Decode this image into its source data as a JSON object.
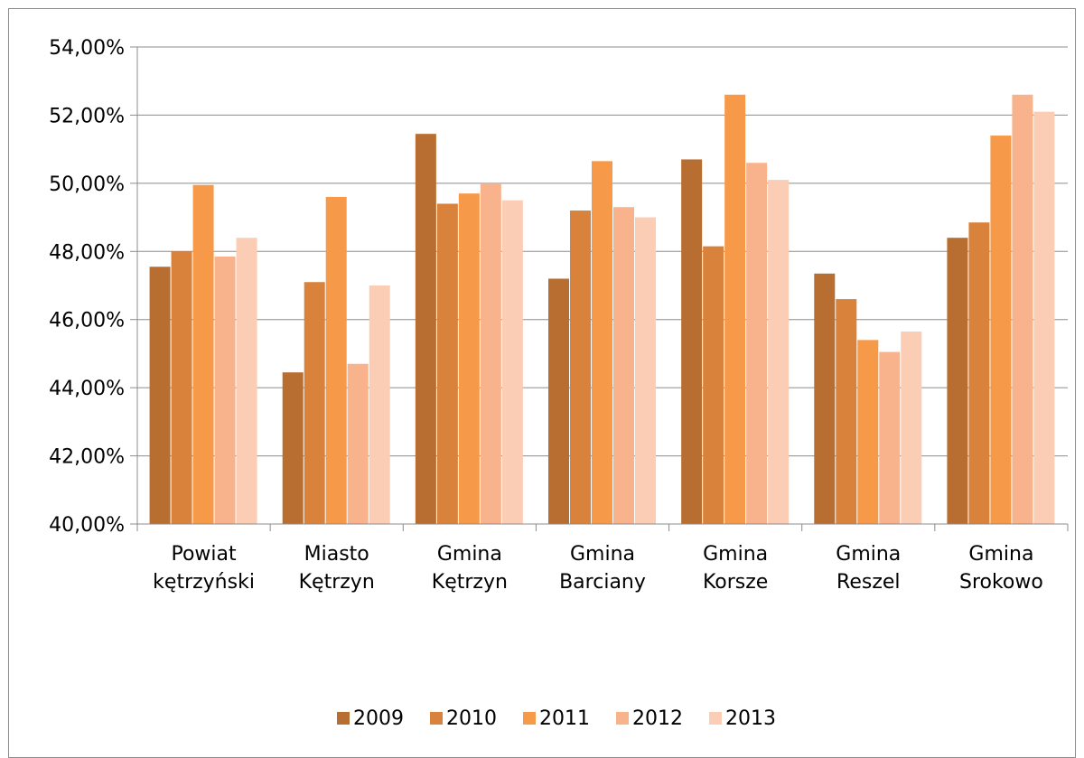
{
  "chart_data": {
    "type": "bar",
    "title": "",
    "xlabel": "",
    "ylabel": "",
    "ylim": [
      40,
      54
    ],
    "y_ticks": [
      "40,00%",
      "42,00%",
      "44,00%",
      "46,00%",
      "48,00%",
      "50,00%",
      "52,00%",
      "54,00%"
    ],
    "grid": true,
    "legend_position": "bottom",
    "categories": [
      [
        "Powiat",
        "kętrzyński"
      ],
      [
        "Miasto",
        "Kętrzyn"
      ],
      [
        "Gmina",
        "Kętrzyn"
      ],
      [
        "Gmina",
        "Barciany"
      ],
      [
        "Gmina",
        "Korsze"
      ],
      [
        "Gmina",
        "Reszel"
      ],
      [
        "Gmina",
        "Srokowo"
      ]
    ],
    "series": [
      {
        "name": "2009",
        "color": "#b86e31",
        "values": [
          47.55,
          44.45,
          51.45,
          47.2,
          50.7,
          47.35,
          48.4
        ]
      },
      {
        "name": "2010",
        "color": "#d9823b",
        "values": [
          48.0,
          47.1,
          49.4,
          49.2,
          48.15,
          46.6,
          48.85
        ]
      },
      {
        "name": "2011",
        "color": "#f69a49",
        "values": [
          49.95,
          49.6,
          49.7,
          50.65,
          52.6,
          45.4,
          51.4
        ]
      },
      {
        "name": "2012",
        "color": "#f8b38d",
        "values": [
          47.85,
          44.7,
          50.0,
          49.3,
          50.6,
          45.05,
          52.6
        ]
      },
      {
        "name": "2013",
        "color": "#fbcdb4",
        "values": [
          48.4,
          47.0,
          49.5,
          49.0,
          50.1,
          45.65,
          52.1
        ]
      }
    ]
  }
}
